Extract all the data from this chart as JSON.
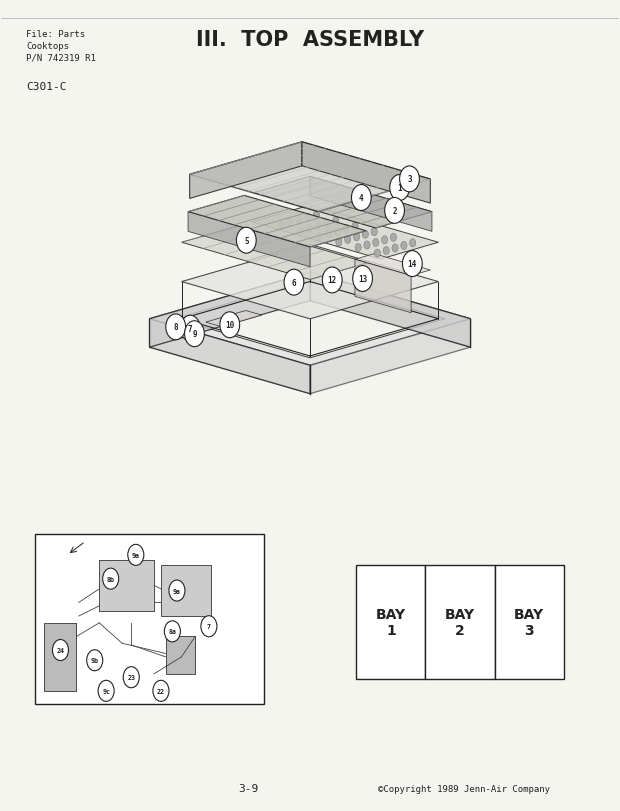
{
  "title": "III.  TOP  ASSEMBLY",
  "header_line1": "File: Parts",
  "header_line2": "Cooktops",
  "header_line3": "P/N 742319 R1",
  "model": "C301-C",
  "footer_page": "3-9",
  "footer_copy": "©Copyright 1989 Jenn-Air Company",
  "bg_color": "#f5f5f0",
  "line_color": "#222222",
  "bay_labels": [
    "BAY\n1",
    "BAY\n2",
    "BAY\n3"
  ]
}
